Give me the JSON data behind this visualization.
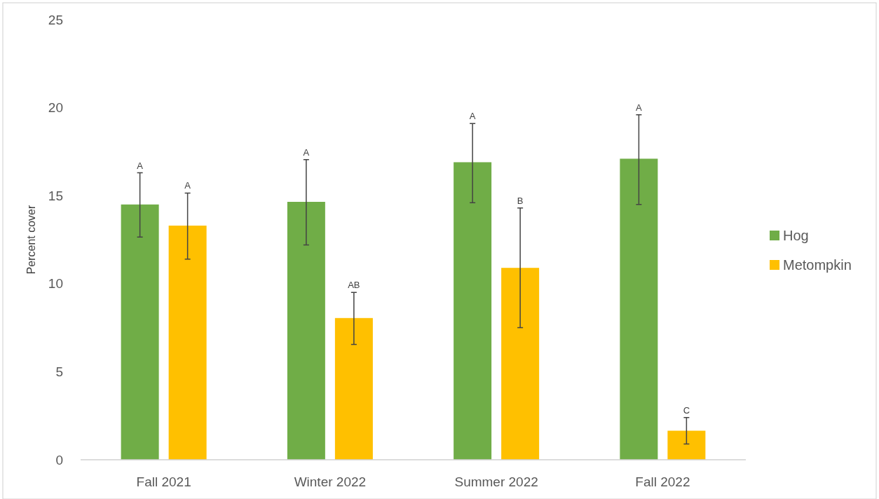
{
  "chart_data": {
    "type": "bar",
    "ylabel": "Percent cover",
    "categories": [
      "Fall 2021",
      "Winter 2022",
      "Summer 2022",
      "Fall 2022"
    ],
    "series": [
      {
        "name": "Hog",
        "color": "#70ad47",
        "values": [
          14.5,
          14.65,
          16.9,
          17.1
        ],
        "errors": [
          [
            12.65,
            16.3
          ],
          [
            12.2,
            17.05
          ],
          [
            14.6,
            19.1
          ],
          [
            14.5,
            19.6
          ]
        ]
      },
      {
        "name": "Metompkin",
        "color": "#ffc000",
        "values": [
          13.3,
          8.05,
          10.9,
          1.65
        ],
        "errors": [
          [
            11.4,
            15.15
          ],
          [
            6.55,
            9.5
          ],
          [
            7.5,
            14.3
          ],
          [
            0.9,
            2.4
          ]
        ]
      }
    ],
    "annotations": [
      "A",
      "A",
      "A",
      "AB",
      "A",
      "B",
      "A",
      "C"
    ],
    "ylim": [
      0,
      25
    ],
    "yticks": [
      0,
      5,
      10,
      15,
      20,
      25
    ],
    "grid": false,
    "legend": "right"
  }
}
